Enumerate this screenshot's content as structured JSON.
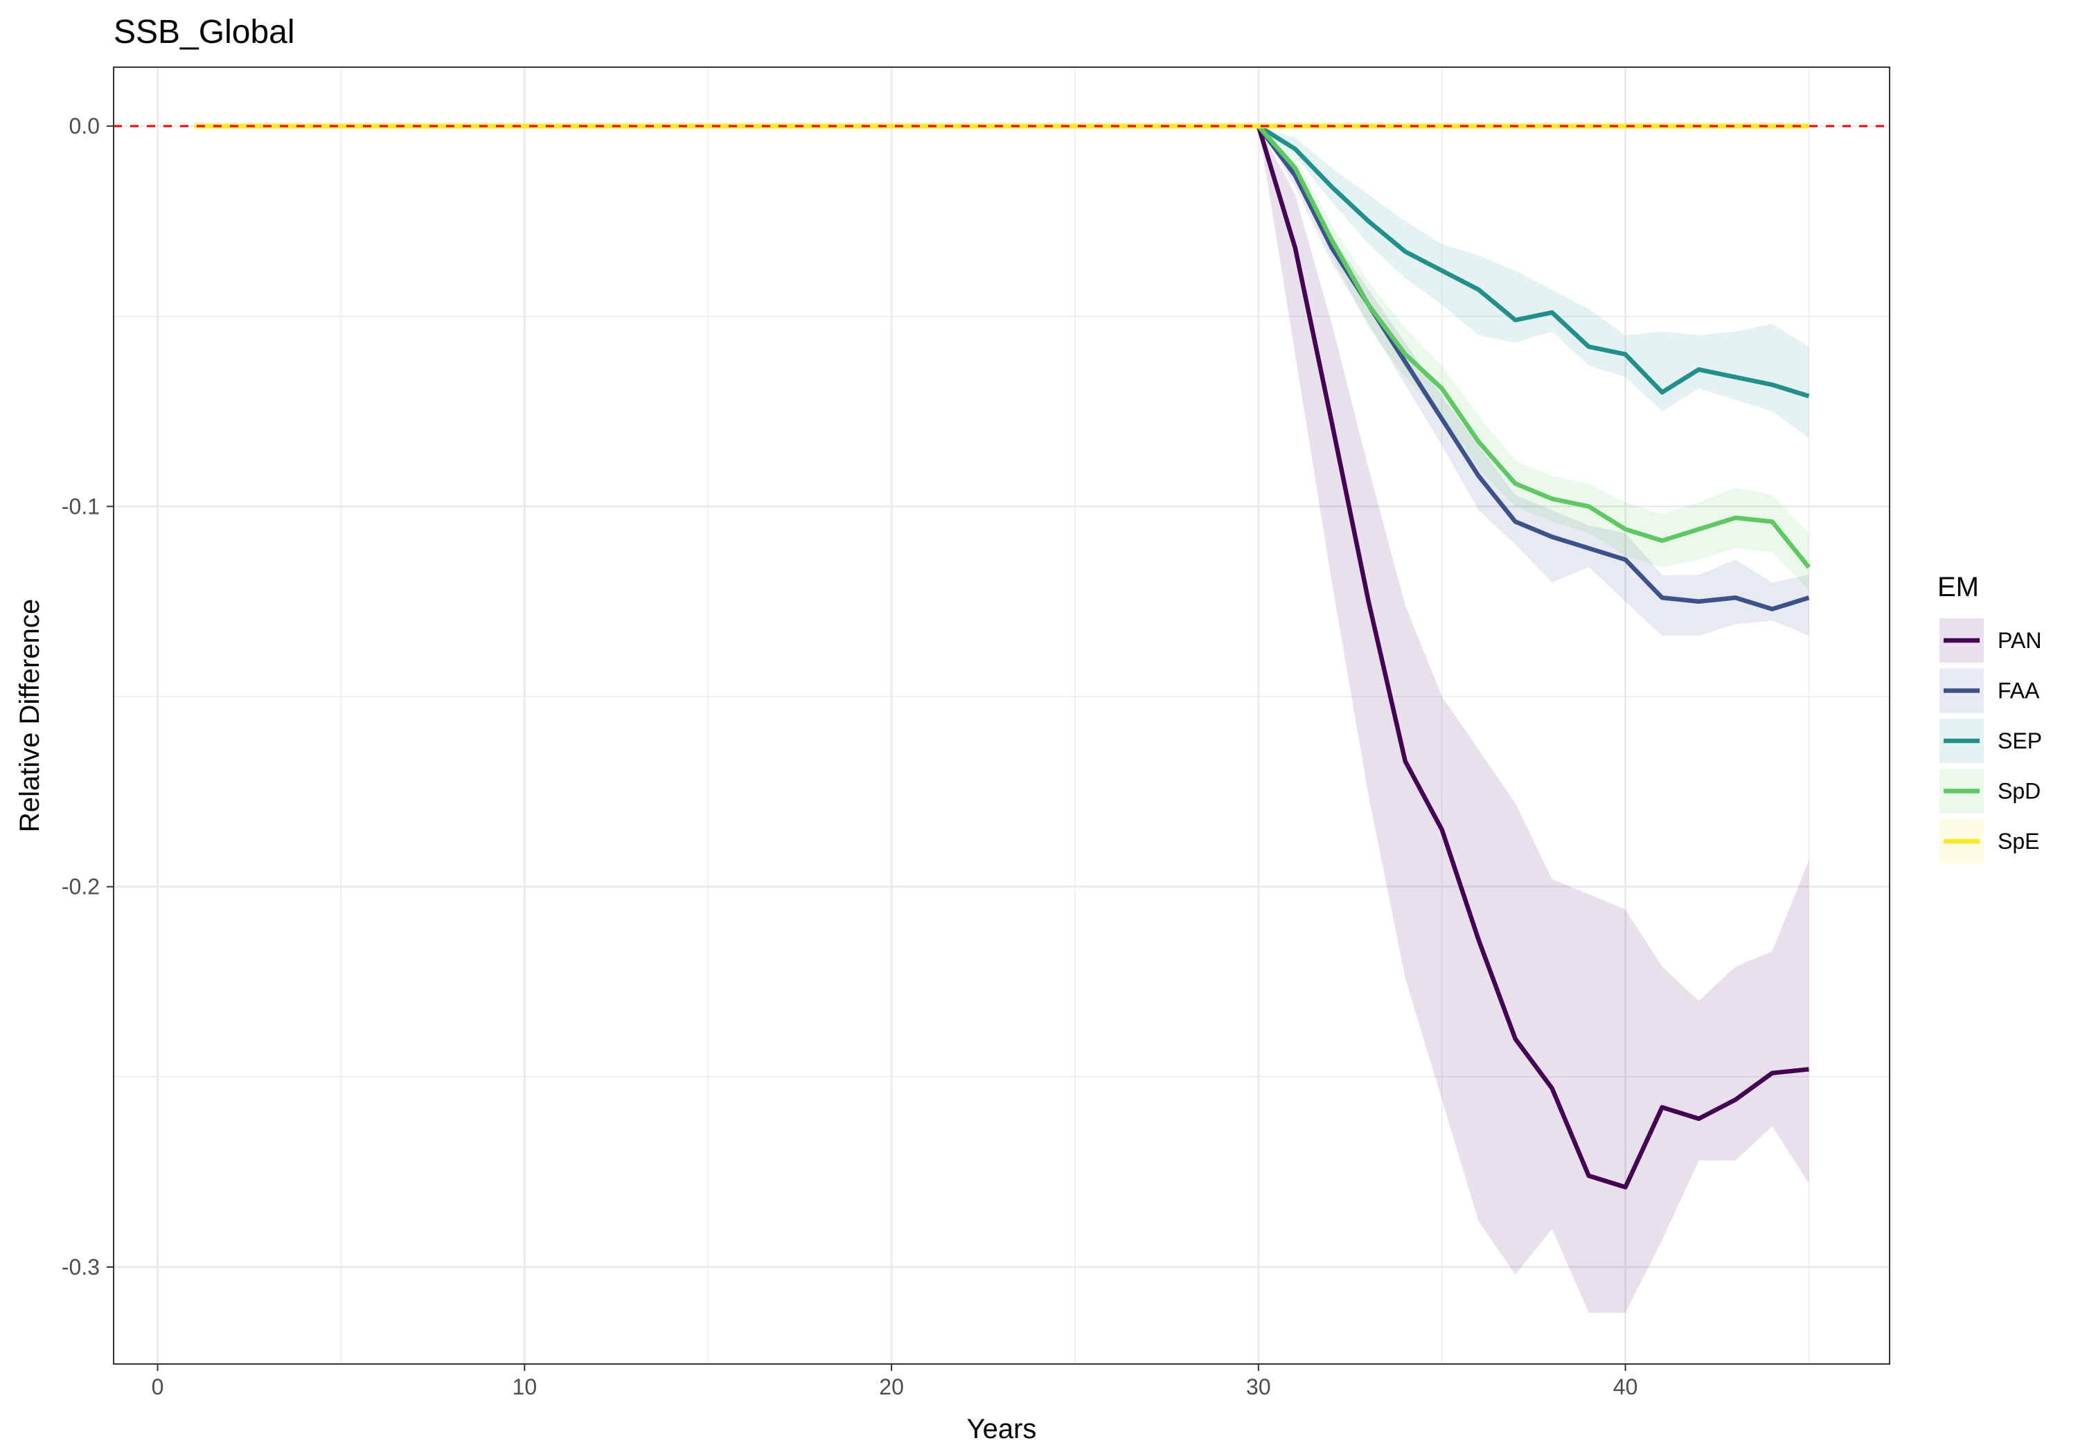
{
  "chart_data": {
    "type": "line",
    "title": "SSB_Global",
    "xlabel": "Years",
    "ylabel": "Relative Difference",
    "xlim": [
      -1.2,
      47.2
    ],
    "ylim": [
      -0.3255,
      0.0155
    ],
    "x_ticks": [
      0,
      10,
      20,
      30,
      40
    ],
    "x_tick_labels": [
      "0",
      "10",
      "20",
      "30",
      "40"
    ],
    "y_ticks": [
      0,
      -0.1,
      -0.2,
      -0.3
    ],
    "y_tick_labels": [
      "0.0",
      "-0.1",
      "-0.2",
      "-0.3"
    ],
    "x_minor_ticks": [
      5,
      15,
      25,
      35,
      45
    ],
    "y_minor_ticks": [
      -0.05,
      -0.15,
      -0.25
    ],
    "grid": true,
    "reference_line": {
      "y": 0,
      "color": "#ff0000",
      "style": "dashed"
    },
    "legend": {
      "title": "EM",
      "position": "right"
    },
    "series": [
      {
        "name": "PAN",
        "color": "#440154",
        "x": [
          30,
          31,
          32,
          33,
          34,
          35,
          36,
          37,
          38,
          39,
          40,
          41,
          42,
          43,
          44,
          45
        ],
        "values": [
          0,
          -0.032,
          -0.078,
          -0.125,
          -0.167,
          -0.185,
          -0.214,
          -0.24,
          -0.253,
          -0.276,
          -0.279,
          -0.258,
          -0.261,
          -0.256,
          -0.249,
          -0.248
        ],
        "lower": [
          0,
          -0.06,
          -0.12,
          -0.176,
          -0.224,
          -0.256,
          -0.288,
          -0.302,
          -0.29,
          -0.312,
          -0.312,
          -0.293,
          -0.272,
          -0.272,
          -0.263,
          -0.278
        ],
        "upper": [
          0,
          -0.018,
          -0.052,
          -0.09,
          -0.126,
          -0.15,
          -0.164,
          -0.178,
          -0.198,
          -0.202,
          -0.206,
          -0.221,
          -0.23,
          -0.221,
          -0.217,
          -0.193
        ]
      },
      {
        "name": "FAA",
        "color": "#3b528b",
        "x": [
          30,
          31,
          32,
          33,
          34,
          35,
          36,
          37,
          38,
          39,
          40,
          41,
          42,
          43,
          44,
          45
        ],
        "values": [
          0,
          -0.013,
          -0.032,
          -0.047,
          -0.062,
          -0.077,
          -0.092,
          -0.104,
          -0.108,
          -0.111,
          -0.114,
          -0.124,
          -0.125,
          -0.124,
          -0.127,
          -0.124
        ],
        "lower": [
          0,
          -0.016,
          -0.036,
          -0.052,
          -0.068,
          -0.084,
          -0.101,
          -0.11,
          -0.12,
          -0.116,
          -0.125,
          -0.134,
          -0.134,
          -0.131,
          -0.13,
          -0.134
        ],
        "upper": [
          0,
          -0.011,
          -0.029,
          -0.043,
          -0.057,
          -0.071,
          -0.084,
          -0.097,
          -0.101,
          -0.105,
          -0.107,
          -0.118,
          -0.118,
          -0.114,
          -0.12,
          -0.118
        ]
      },
      {
        "name": "SEP",
        "color": "#21908c",
        "x": [
          30,
          31,
          32,
          33,
          34,
          35,
          36,
          37,
          38,
          39,
          40,
          41,
          42,
          43,
          44,
          45
        ],
        "values": [
          0,
          -0.006,
          -0.016,
          -0.025,
          -0.033,
          -0.038,
          -0.043,
          -0.051,
          -0.049,
          -0.058,
          -0.06,
          -0.07,
          -0.064,
          -0.066,
          -0.068,
          -0.071
        ],
        "lower": [
          0,
          -0.008,
          -0.02,
          -0.031,
          -0.04,
          -0.047,
          -0.055,
          -0.057,
          -0.054,
          -0.063,
          -0.066,
          -0.075,
          -0.069,
          -0.072,
          -0.075,
          -0.082
        ],
        "upper": [
          0,
          -0.003,
          -0.011,
          -0.018,
          -0.025,
          -0.031,
          -0.034,
          -0.038,
          -0.043,
          -0.048,
          -0.055,
          -0.054,
          -0.055,
          -0.054,
          -0.052,
          -0.058
        ]
      },
      {
        "name": "SpD",
        "color": "#5ec962",
        "x": [
          30,
          31,
          32,
          33,
          34,
          35,
          36,
          37,
          38,
          39,
          40,
          41,
          42,
          43,
          44,
          45
        ],
        "values": [
          0,
          -0.011,
          -0.03,
          -0.047,
          -0.06,
          -0.069,
          -0.083,
          -0.094,
          -0.098,
          -0.1,
          -0.106,
          -0.109,
          -0.106,
          -0.103,
          -0.104,
          -0.116
        ],
        "lower": [
          0,
          -0.014,
          -0.034,
          -0.053,
          -0.066,
          -0.076,
          -0.09,
          -0.1,
          -0.104,
          -0.107,
          -0.113,
          -0.116,
          -0.114,
          -0.111,
          -0.112,
          -0.122
        ],
        "upper": [
          0,
          -0.008,
          -0.026,
          -0.041,
          -0.053,
          -0.063,
          -0.076,
          -0.088,
          -0.092,
          -0.094,
          -0.099,
          -0.102,
          -0.099,
          -0.095,
          -0.097,
          -0.107
        ]
      },
      {
        "name": "SpE",
        "color": "#fde725",
        "x": [
          1,
          45
        ],
        "values": [
          0,
          0
        ],
        "lower": [
          -0.001,
          -0.001
        ],
        "upper": [
          0.001,
          0.001
        ]
      }
    ]
  }
}
